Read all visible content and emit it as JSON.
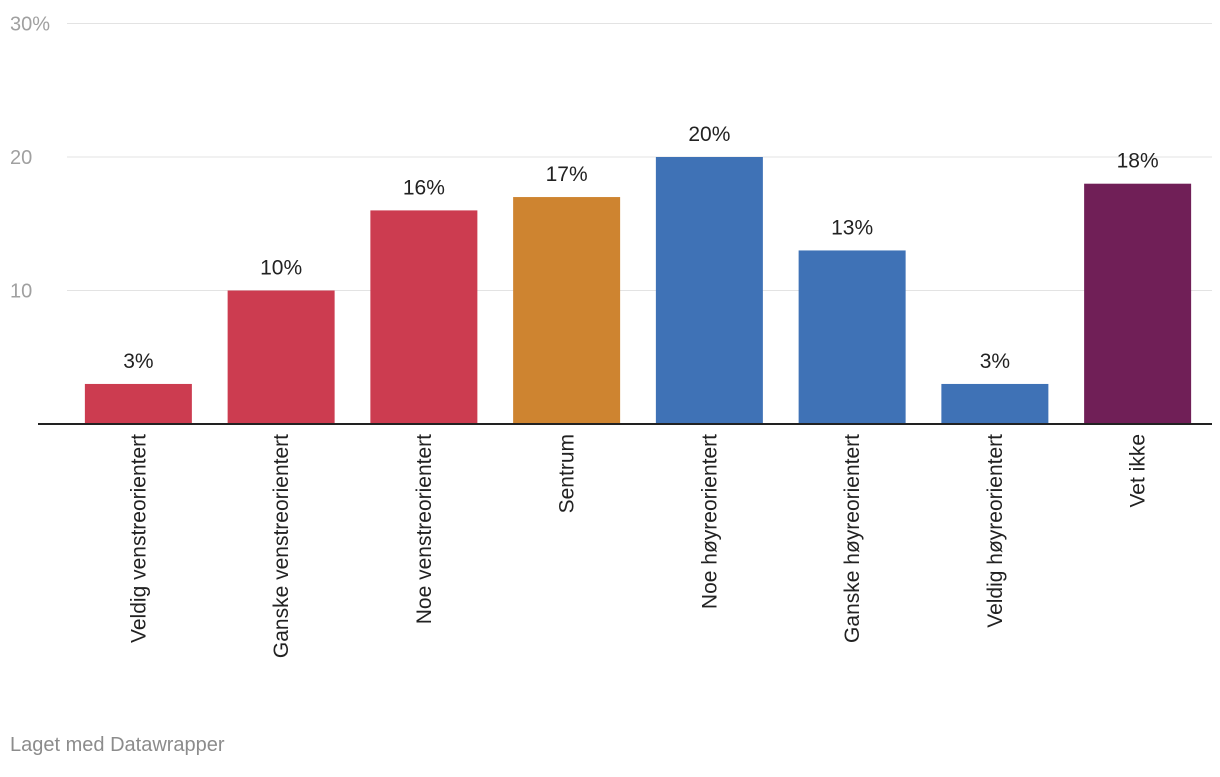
{
  "chart_data": {
    "type": "bar",
    "categories": [
      "Veldig venstreorientert",
      "Ganske venstreorientert",
      "Noe venstreorientert",
      "Sentrum",
      "Noe høyreorientert",
      "Ganske høyreorientert",
      "Veldig høyreorientert",
      "Vet ikke"
    ],
    "values": [
      3,
      10,
      16,
      17,
      20,
      13,
      3,
      18
    ],
    "value_labels": [
      "3%",
      "10%",
      "16%",
      "17%",
      "20%",
      "13%",
      "3%",
      "18%"
    ],
    "colors": [
      "#cc3c50",
      "#cc3c50",
      "#cc3c50",
      "#ce8430",
      "#3f72b6",
      "#3f72b6",
      "#3f72b6",
      "#701f57"
    ],
    "ylim": [
      0,
      30
    ],
    "y_ticks": [
      10,
      20,
      30
    ],
    "y_tick_labels": [
      "10",
      "20",
      "30%"
    ],
    "grid": true,
    "title": "",
    "xlabel": "",
    "ylabel": ""
  },
  "footer": {
    "credit": "Laget med Datawrapper"
  },
  "style": {
    "grid_color": "#e3e3e3",
    "axis_color": "#222222",
    "tick_label_color": "#a0a0a0",
    "text_color": "#222222",
    "credit_color": "#8c8c8c"
  }
}
